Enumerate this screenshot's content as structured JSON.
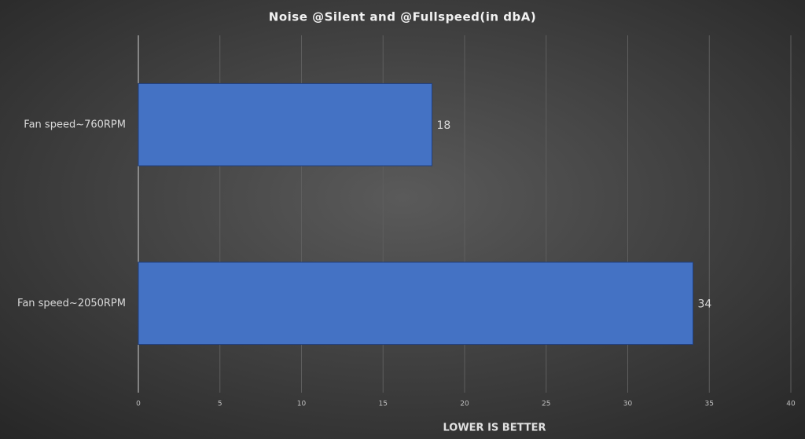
{
  "chart_data": {
    "type": "bar",
    "orientation": "horizontal",
    "title": "Noise @Silent and @Fullspeed(in dbA)",
    "x_label": "LOWER IS BETTER",
    "categories": [
      "Fan speed~760RPM",
      "Fan speed~2050RPM"
    ],
    "values": [
      18,
      34
    ],
    "color": "#4472c4",
    "xlim": [
      0,
      40
    ],
    "xticks": [
      0,
      5,
      10,
      15,
      20,
      25,
      30,
      35,
      40
    ],
    "grid": true
  }
}
